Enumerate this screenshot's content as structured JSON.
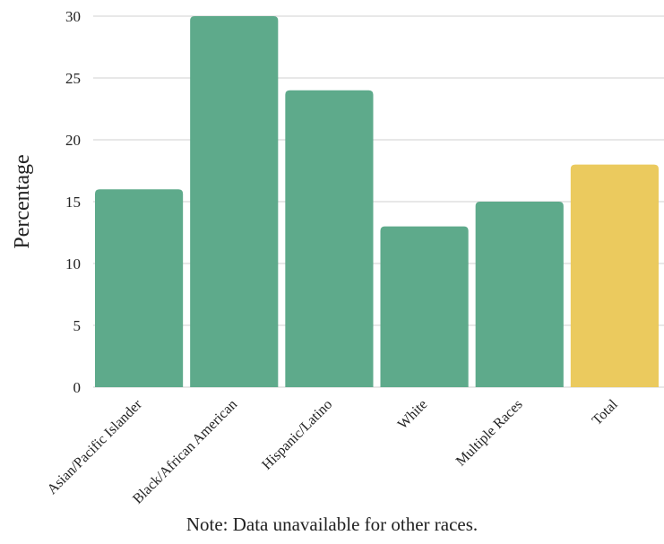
{
  "chart_data": {
    "type": "bar",
    "categories": [
      "Asian/Pacific Islander",
      "Black/African American",
      "Hispanic/Latino",
      "White",
      "Multiple Races",
      "Total"
    ],
    "values": [
      16,
      30,
      24,
      13,
      15,
      18
    ],
    "ylabel": "Percentage",
    "xlabel": "",
    "ylim": [
      0,
      30
    ],
    "yticks": [
      0,
      5,
      10,
      15,
      20,
      25,
      30
    ],
    "grid": true,
    "colors": {
      "default_bar": "#5eaa8b",
      "highlight_bar": "#ebca5e",
      "grid": "#d0d0d0"
    },
    "highlight_category": "Total"
  },
  "note": "Note: Data unavailable for other races."
}
